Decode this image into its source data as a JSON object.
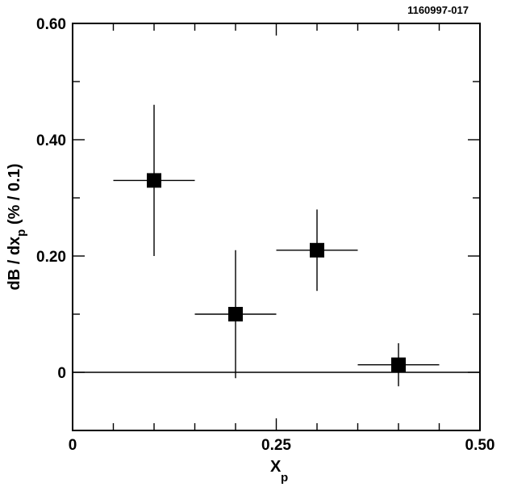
{
  "figure_id": "1160997-017",
  "chart_data": {
    "type": "scatter",
    "title": "",
    "xlabel": "X",
    "xlabel_subscript": "p",
    "ylabel_prefix": "dB / dx",
    "ylabel_subscript": "p",
    "ylabel_suffix": " (% / 0.1)",
    "xlim": [
      0,
      0.5
    ],
    "ylim": [
      -0.1,
      0.6
    ],
    "x_tick_labels": [
      "0",
      "0.25",
      "0.50"
    ],
    "y_tick_labels": [
      "0",
      "0.20",
      "0.40",
      "0.60"
    ],
    "grid": false,
    "reference_line_y": 0,
    "points": [
      {
        "x": 0.1,
        "y": 0.33,
        "x_err": 0.05,
        "y_err": 0.13
      },
      {
        "x": 0.2,
        "y": 0.1,
        "x_err": 0.05,
        "y_err": 0.11
      },
      {
        "x": 0.3,
        "y": 0.21,
        "x_err": 0.05,
        "y_err": 0.07
      },
      {
        "x": 0.4,
        "y": 0.013,
        "x_err": 0.05,
        "y_err": 0.037
      }
    ]
  }
}
